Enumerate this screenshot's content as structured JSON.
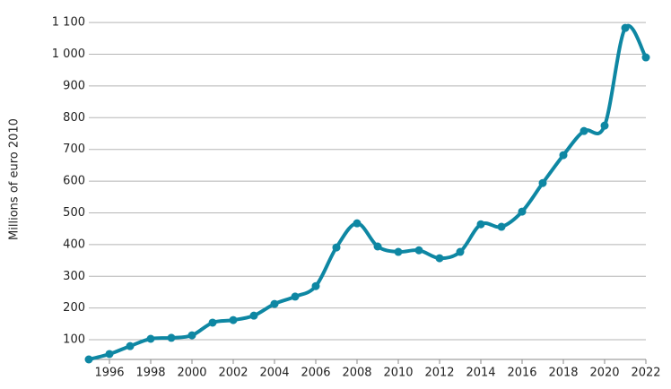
{
  "chart_data": {
    "type": "line",
    "y_label": "Millions of euro 2010",
    "x": [
      1995,
      1996,
      1997,
      1998,
      1999,
      2000,
      2001,
      2002,
      2003,
      2004,
      2005,
      2006,
      2007,
      2008,
      2009,
      2010,
      2011,
      2012,
      2013,
      2014,
      2015,
      2016,
      2017,
      2018,
      2019,
      2020,
      2021,
      2022
    ],
    "series": [
      {
        "color": "#0e87a3",
        "values": [
          38,
          55,
          80,
          103,
          106,
          114,
          154,
          162,
          176,
          213,
          236,
          269,
          391,
          467,
          394,
          377,
          382,
          357,
          377,
          464,
          456,
          504,
          594,
          682,
          758,
          775,
          1083,
          990
        ]
      }
    ],
    "xlim": [
      1995,
      2022
    ],
    "xticks": [
      1996,
      1998,
      2000,
      2002,
      2004,
      2006,
      2008,
      2010,
      2012,
      2014,
      2016,
      2018,
      2020,
      2022
    ],
    "ylim": [
      38,
      1171
    ],
    "yticks": [
      100,
      200,
      300,
      400,
      500,
      600,
      700,
      800,
      900,
      {
        "value": 1000,
        "label": "1 000"
      },
      {
        "value": 1100,
        "label": "1 100"
      }
    ],
    "grid": true
  }
}
